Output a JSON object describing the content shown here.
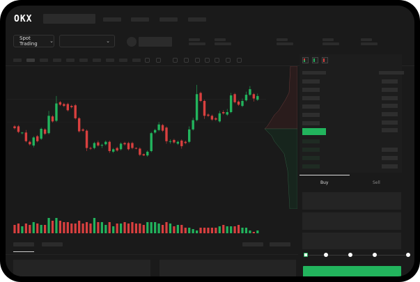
{
  "header": {
    "logo": "OKX"
  },
  "toolbar": {
    "market_selector": "Spot Trading",
    "pair_selector_chevron": "chevron-down-icon"
  },
  "orderbook": {
    "view_icons": [
      "orderbook-both-icon",
      "orderbook-bids-icon",
      "orderbook-asks-icon"
    ]
  },
  "trade": {
    "tabs": [
      {
        "label": "Buy",
        "active": true
      },
      {
        "label": "Sell",
        "active": false
      }
    ],
    "slider_level": 0
  },
  "colors": {
    "up": "#22b45d",
    "down": "#d9403f",
    "background": "#1a1a1a",
    "accent": "#22b45d"
  },
  "chart_data": {
    "type": "candlestick",
    "candles": [
      [
        68,
        70,
        63,
        65
      ],
      [
        68,
        70,
        57,
        59
      ],
      [
        57,
        59,
        55,
        58
      ],
      [
        58,
        62,
        42,
        44
      ],
      [
        43,
        45,
        37,
        39
      ],
      [
        37,
        52,
        34,
        50
      ],
      [
        52,
        54,
        42,
        44
      ],
      [
        48,
        66,
        46,
        64
      ],
      [
        63,
        65,
        54,
        56
      ],
      [
        57,
        93,
        55,
        85
      ],
      [
        84,
        86,
        74,
        76
      ],
      [
        77,
        117,
        75,
        105
      ],
      [
        107,
        109,
        101,
        103
      ],
      [
        104,
        106,
        99,
        101
      ],
      [
        104,
        106,
        92,
        94
      ],
      [
        101,
        103,
        97,
        99
      ],
      [
        102,
        104,
        79,
        81
      ],
      [
        81,
        83,
        58,
        60
      ],
      [
        63,
        65,
        59,
        61
      ],
      [
        61,
        63,
        28,
        33
      ],
      [
        33,
        35,
        30,
        32
      ],
      [
        33,
        43,
        31,
        41
      ],
      [
        42,
        45,
        35,
        37
      ],
      [
        37,
        40,
        33,
        38
      ],
      [
        39,
        45,
        37,
        43
      ],
      [
        43,
        45,
        25,
        28
      ],
      [
        27,
        33,
        25,
        31
      ],
      [
        33,
        35,
        27,
        29
      ],
      [
        31,
        42,
        29,
        40
      ],
      [
        41,
        43,
        37,
        39
      ],
      [
        41,
        43,
        29,
        31
      ],
      [
        41,
        43,
        31,
        33
      ],
      [
        33,
        34,
        31,
        32
      ],
      [
        32,
        34,
        20,
        22
      ],
      [
        23,
        24,
        20,
        21
      ],
      [
        21,
        29,
        19,
        27
      ],
      [
        28,
        59,
        26,
        57
      ],
      [
        58,
        64,
        56,
        62
      ],
      [
        62,
        75,
        60,
        71
      ],
      [
        70,
        72,
        59,
        61
      ],
      [
        66,
        68,
        40,
        44
      ],
      [
        43,
        47,
        40,
        44
      ],
      [
        46,
        48,
        40,
        42
      ],
      [
        40,
        45,
        38,
        43
      ],
      [
        45,
        47,
        32,
        36
      ],
      [
        43,
        45,
        39,
        41
      ],
      [
        43,
        68,
        41,
        63
      ],
      [
        63,
        82,
        61,
        78
      ],
      [
        78,
        135,
        76,
        120
      ],
      [
        122,
        124,
        107,
        109
      ],
      [
        109,
        111,
        80,
        85
      ],
      [
        87,
        89,
        83,
        85
      ],
      [
        85,
        87,
        77,
        79
      ],
      [
        81,
        83,
        77,
        79
      ],
      [
        76,
        93,
        74,
        89
      ],
      [
        91,
        94,
        87,
        89
      ],
      [
        87,
        96,
        85,
        91
      ],
      [
        91,
        122,
        89,
        118
      ],
      [
        120,
        122,
        105,
        107
      ],
      [
        108,
        110,
        101,
        103
      ],
      [
        101,
        113,
        99,
        109
      ],
      [
        110,
        124,
        108,
        119
      ],
      [
        119,
        133,
        117,
        128
      ],
      [
        120,
        122,
        108,
        113
      ],
      [
        111,
        121,
        109,
        117
      ]
    ],
    "volume": [
      6,
      7,
      5,
      7,
      6,
      8,
      7,
      6,
      6,
      11,
      9,
      11,
      9,
      8,
      8,
      7,
      7,
      9,
      7,
      8,
      7,
      11,
      8,
      8,
      6,
      8,
      5,
      7,
      7,
      8,
      7,
      8,
      7,
      7,
      6,
      8,
      8,
      8,
      7,
      6,
      8,
      7,
      5,
      6,
      6,
      4,
      4,
      3,
      2,
      4,
      4,
      4,
      4,
      4,
      5,
      6,
      5,
      5,
      5,
      6,
      4,
      4,
      2,
      1,
      2
    ]
  }
}
